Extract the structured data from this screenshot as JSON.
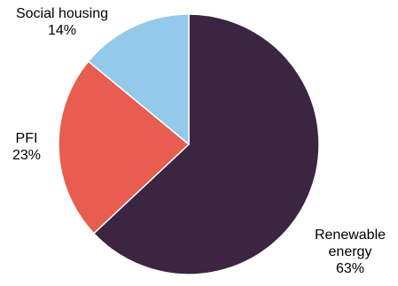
{
  "chart_data": {
    "type": "pie",
    "start_angle_deg": 0,
    "direction": "clockwise",
    "slices": [
      {
        "name": "Renewable energy",
        "label_lines": [
          "Renewable",
          "energy"
        ],
        "value": 63,
        "value_label": "63%",
        "color": "#3c2541"
      },
      {
        "name": "PFI",
        "label_lines": [
          "PFI"
        ],
        "value": 23,
        "value_label": "23%",
        "color": "#e85d4f"
      },
      {
        "name": "Social housing",
        "label_lines": [
          "Social housing"
        ],
        "value": 14,
        "value_label": "14%",
        "color": "#93c9ea"
      }
    ],
    "slice_border_color": "#ffffff"
  }
}
